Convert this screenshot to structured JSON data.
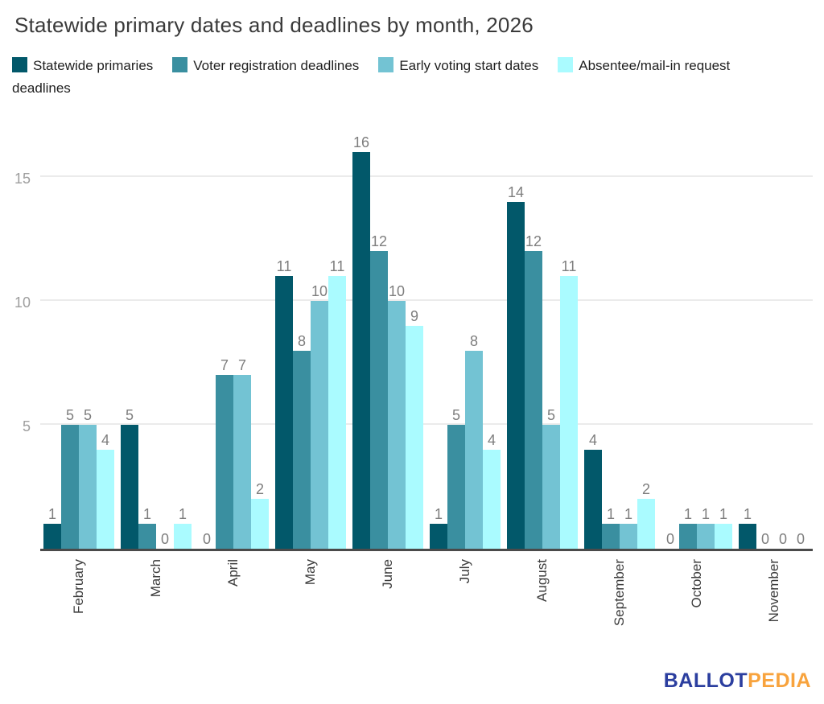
{
  "title": "Statewide primary dates and deadlines by month, 2026",
  "chart_data": {
    "type": "bar",
    "title": "Statewide primary dates and deadlines by month, 2026",
    "categories": [
      "February",
      "March",
      "April",
      "May",
      "June",
      "July",
      "August",
      "September",
      "October",
      "November"
    ],
    "series": [
      {
        "name": "Statewide primaries",
        "color": "#02586a",
        "values": [
          1,
          5,
          0,
          11,
          16,
          1,
          14,
          4,
          0,
          1
        ]
      },
      {
        "name": "Voter registration deadlines",
        "color": "#3a8fa0",
        "values": [
          5,
          1,
          7,
          8,
          12,
          5,
          12,
          1,
          1,
          0
        ]
      },
      {
        "name": "Early voting start dates",
        "color": "#73c3d3",
        "values": [
          5,
          0,
          7,
          10,
          10,
          8,
          5,
          1,
          1,
          0
        ]
      },
      {
        "name": "Absentee/mail-in request deadlines",
        "color": "#aafbff",
        "values": [
          4,
          1,
          2,
          11,
          9,
          4,
          11,
          2,
          1,
          0
        ]
      }
    ],
    "xlabel": "",
    "ylabel": "",
    "yticks": [
      5,
      10,
      15
    ],
    "ylim": [
      0,
      16
    ],
    "grid": true,
    "legend_position": "top",
    "value_labels": true
  },
  "logo": {
    "ballot": "BALLOT",
    "pedia": "PEDIA",
    "ballot_color": "#2b3e9f",
    "pedia_color": "#f8a33d"
  }
}
